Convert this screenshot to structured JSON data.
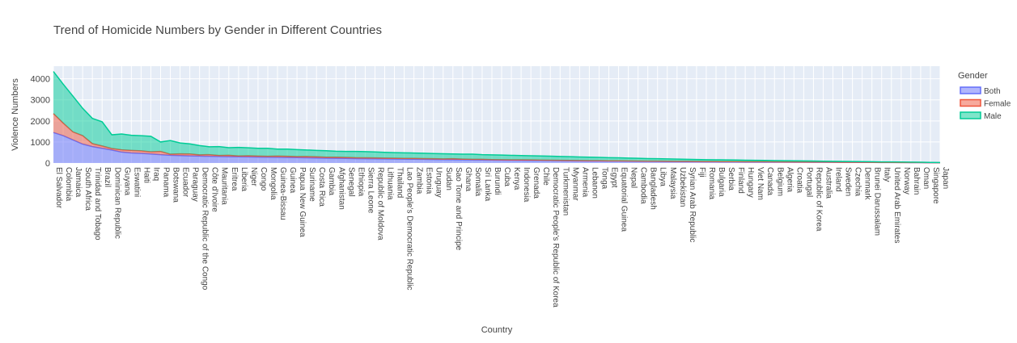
{
  "chart_data": {
    "type": "area",
    "stacked": true,
    "title": "Trend of Homicide Numbers by Gender in Different Countries",
    "xlabel": "Country",
    "ylabel": "Violence Numbers",
    "ylim": [
      0,
      4600
    ],
    "yticks": [
      0,
      1000,
      2000,
      3000,
      4000
    ],
    "grid": true,
    "legend_title": "Gender",
    "legend_position": "top-right",
    "categories": [
      "El Salvador",
      "Colombia",
      "Jamaica",
      "South Africa",
      "Trinidad and Tobago",
      "Brazil",
      "Dominican Republic",
      "Guyana",
      "Eswatini",
      "Haiti",
      "Iraq",
      "Panama",
      "Botswana",
      "Ecuador",
      "Paraguay",
      "Democratic Republic of the Congo",
      "Côte d'Ivoire",
      "Mauritania",
      "Eritrea",
      "Liberia",
      "Niger",
      "Congo",
      "Mongolia",
      "Guinea-Bissau",
      "Guinea",
      "Papua New Guinea",
      "Suriname",
      "Costa Rica",
      "Gambia",
      "Afghanistan",
      "Senegal",
      "Ethiopia",
      "Sierra Leone",
      "Republic of Moldova",
      "Lithuania",
      "Thailand",
      "Lao People's Democratic Republic",
      "Zambia",
      "Estonia",
      "Uruguay",
      "Sudan",
      "Sao Tome and Principe",
      "Ghana",
      "Somalia",
      "Sri Lanka",
      "Burundi",
      "Cuba",
      "Kenya",
      "Indonesia",
      "Grenada",
      "Chile",
      "Democratic People's Republic of Korea",
      "Turkmenistan",
      "Myanmar",
      "Armenia",
      "Lebanon",
      "Tonga",
      "Egypt",
      "Equatorial Guinea",
      "Nepal",
      "Cambodia",
      "Bangladesh",
      "Libya",
      "Malaysia",
      "Uzbekistan",
      "Syrian Arab Republic",
      "Fiji",
      "Romania",
      "Bulgaria",
      "Serbia",
      "Finland",
      "Hungary",
      "Viet Nam",
      "Canada",
      "Belgium",
      "Algeria",
      "Croatia",
      "Portugal",
      "Republic of Korea",
      "Australia",
      "Ireland",
      "Sweden",
      "Czechia",
      "Denmark",
      "Brunei Darussalam",
      "Italy",
      "United Arab Emirates",
      "Norway",
      "Bahrain",
      "Oman",
      "Singapore",
      "Japan"
    ],
    "series": [
      {
        "name": "Both",
        "color": "#636efa",
        "values": [
          1450,
          1300,
          1100,
          900,
          780,
          700,
          620,
          520,
          480,
          460,
          430,
          400,
          370,
          355,
          340,
          330,
          320,
          310,
          300,
          295,
          290,
          285,
          280,
          272,
          265,
          258,
          250,
          240,
          232,
          225,
          218,
          212,
          205,
          200,
          195,
          190,
          185,
          180,
          175,
          170,
          165,
          160,
          155,
          150,
          145,
          140,
          135,
          130,
          126,
          122,
          118,
          114,
          110,
          106,
          102,
          98,
          95,
          92,
          89,
          86,
          83,
          80,
          77,
          74,
          71,
          68,
          65,
          62,
          60,
          58,
          56,
          54,
          52,
          50,
          48,
          46,
          44,
          42,
          40,
          38,
          36,
          34,
          32,
          30,
          28,
          26,
          24,
          22,
          20,
          18,
          15,
          12
        ]
      },
      {
        "name": "Female",
        "color": "#ef553b",
        "values": [
          900,
          600,
          380,
          400,
          140,
          110,
          70,
          110,
          120,
          120,
          100,
          150,
          50,
          80,
          90,
          60,
          80,
          50,
          70,
          40,
          55,
          45,
          40,
          60,
          55,
          50,
          60,
          55,
          45,
          55,
          50,
          40,
          45,
          45,
          40,
          40,
          35,
          40,
          35,
          35,
          30,
          45,
          30,
          25,
          30,
          25,
          25,
          25,
          25,
          25,
          20,
          20,
          20,
          20,
          20,
          18,
          18,
          15,
          18,
          15,
          15,
          12,
          12,
          12,
          12,
          12,
          10,
          10,
          10,
          10,
          10,
          10,
          10,
          10,
          8,
          8,
          8,
          8,
          8,
          8,
          6,
          6,
          6,
          6,
          5,
          5,
          5,
          4,
          4,
          4,
          3,
          3
        ]
      },
      {
        "name": "Male",
        "color": "#00cc96",
        "values": [
          2000,
          1850,
          1700,
          1300,
          1200,
          1150,
          650,
          750,
          720,
          720,
          740,
          450,
          650,
          520,
          480,
          440,
          370,
          420,
          360,
          410,
          380,
          370,
          380,
          330,
          340,
          330,
          310,
          305,
          310,
          280,
          285,
          300,
          290,
          280,
          275,
          265,
          265,
          255,
          255,
          245,
          245,
          225,
          235,
          245,
          225,
          225,
          220,
          210,
          205,
          200,
          197,
          191,
          183,
          174,
          166,
          160,
          153,
          146,
          140,
          133,
          125,
          120,
          115,
          109,
          103,
          97,
          93,
          88,
          84,
          80,
          76,
          72,
          68,
          64,
          61,
          57,
          53,
          50,
          46,
          42,
          39,
          35,
          32,
          29,
          27,
          24,
          22,
          20,
          17,
          15,
          13,
          10
        ]
      }
    ]
  }
}
